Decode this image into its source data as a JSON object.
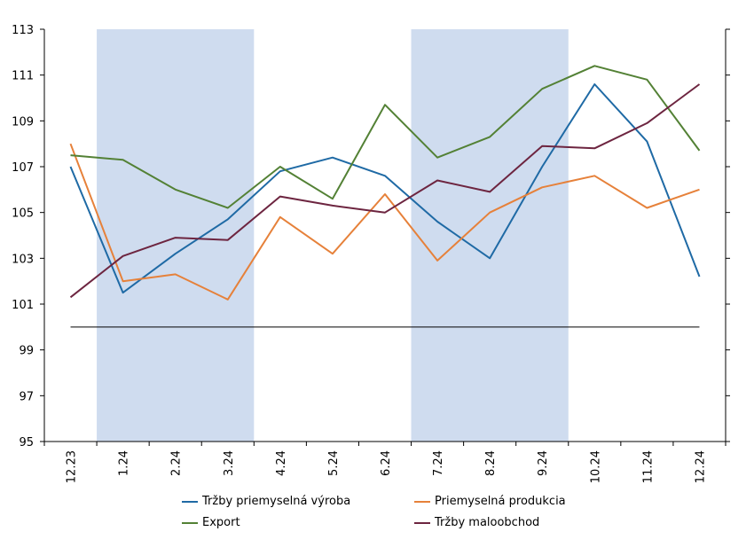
{
  "chart_data": {
    "type": "line",
    "title": "",
    "xlabel": "",
    "ylabel": "",
    "ylim": [
      95,
      113
    ],
    "yticks": [
      95,
      97,
      99,
      101,
      103,
      105,
      107,
      109,
      111,
      113
    ],
    "ytick_labels": [
      "95",
      "97",
      "99",
      "101",
      "103",
      "105",
      "107",
      "109",
      "111",
      "113"
    ],
    "categories": [
      "12.23",
      "1.24",
      "2.24",
      "3.24",
      "4.24",
      "5.24",
      "6.24",
      "7.24",
      "8.24",
      "9.24",
      "10.24",
      "11.24",
      "12.24"
    ],
    "shaded_periods": [
      {
        "from": "1.24",
        "to": "3.24"
      },
      {
        "from": "7.24",
        "to": "9.24"
      }
    ],
    "reference_line": 100,
    "colors": {
      "shade": "#cfdcef",
      "axis": "#000000",
      "reference": "#000000"
    },
    "series": [
      {
        "name": "Tržby priemyselná výroba",
        "color": "#1f6aa5",
        "values": [
          107.0,
          101.5,
          103.2,
          104.7,
          106.8,
          107.4,
          106.6,
          104.6,
          103.0,
          107.0,
          110.6,
          108.1,
          102.2
        ]
      },
      {
        "name": "Priemyselná produkcia",
        "color": "#e6813a",
        "values": [
          108.0,
          102.0,
          102.3,
          101.2,
          104.8,
          103.2,
          105.8,
          102.9,
          105.0,
          106.1,
          106.6,
          105.2,
          106.0
        ]
      },
      {
        "name": "Export",
        "color": "#538135",
        "values": [
          107.5,
          107.3,
          106.0,
          105.2,
          107.0,
          105.6,
          109.7,
          107.4,
          108.3,
          110.4,
          111.4,
          110.8,
          107.7
        ]
      },
      {
        "name": "Tržby maloobchod",
        "color": "#6d2540",
        "values": [
          101.3,
          103.1,
          103.9,
          103.8,
          105.7,
          105.3,
          105.0,
          106.4,
          105.9,
          107.9,
          107.8,
          108.9,
          110.6
        ]
      }
    ]
  }
}
